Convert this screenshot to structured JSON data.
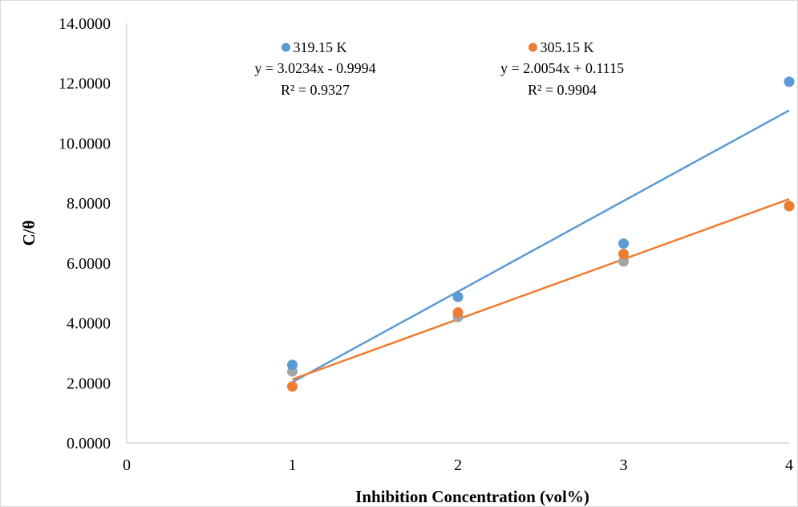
{
  "chart_data": {
    "type": "scatter",
    "xlabel": "Inhibition Concentration (vol%)",
    "ylabel": "C/θ",
    "xlim": [
      0,
      4
    ],
    "ylim": [
      0,
      14
    ],
    "x_ticks": [
      "0",
      "1",
      "2",
      "3",
      "4"
    ],
    "y_ticks": [
      "0.0000",
      "2.0000",
      "4.0000",
      "6.0000",
      "8.0000",
      "10.0000",
      "12.0000",
      "14.0000"
    ],
    "grid": false,
    "series": [
      {
        "name": "319.15 K",
        "color": "#5b9bd5",
        "x": [
          1,
          2,
          3,
          4
        ],
        "y": [
          2.6,
          4.87,
          6.65,
          12.05
        ],
        "trendline": {
          "slope": 3.0234,
          "intercept": -0.9994,
          "x_range": [
            1,
            4
          ]
        },
        "equation": "y = 3.0234x  - 0.9994",
        "r2": "R² = 0.9327"
      },
      {
        "name": "305.15 K",
        "color": "#ed7d31",
        "x": [
          1,
          2,
          3,
          4
        ],
        "y": [
          1.88,
          4.35,
          6.3,
          7.9
        ],
        "trendline": {
          "slope": 2.0054,
          "intercept": 0.1115,
          "x_range": [
            1,
            4
          ]
        },
        "equation": "y = 2.0054x  + 0.1115",
        "r2": "R² = 0.9904"
      },
      {
        "color": "#a5a5a5",
        "x": [
          1,
          2,
          3,
          4
        ],
        "y": [
          2.38,
          4.2,
          6.05,
          7.9
        ]
      }
    ]
  }
}
